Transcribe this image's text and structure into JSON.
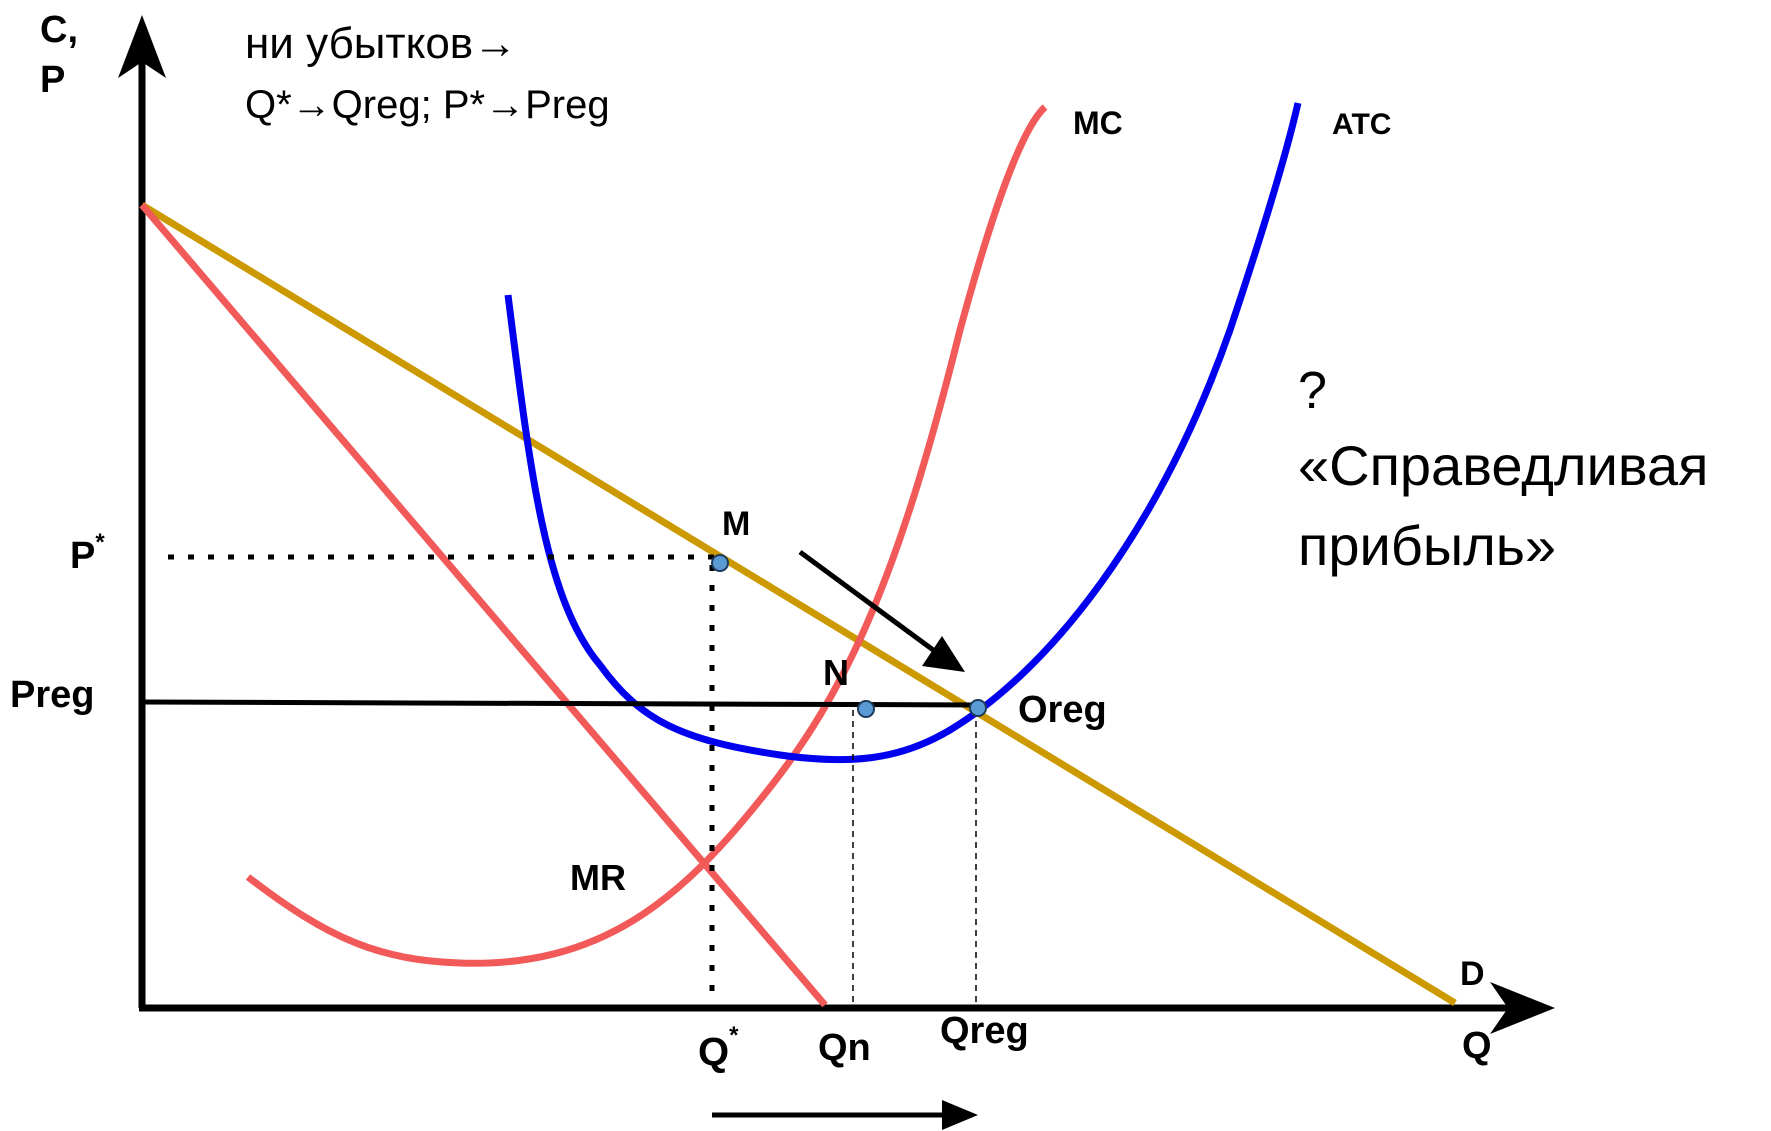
{
  "top_text": {
    "line1": "ни убытков→",
    "line2": "Q*→Qreg; P*→Preg"
  },
  "axes": {
    "y_label_line1": "C,",
    "y_label_line2": "P",
    "x_label": "Q"
  },
  "curves": {
    "mc": "MC",
    "atc": "ATC",
    "mr": "MR",
    "d": "D"
  },
  "points": {
    "m": "M",
    "n": "N",
    "oreg": "Oreg"
  },
  "price_labels": {
    "p_star": "P",
    "p_star_sup": "*",
    "preg": "Preg"
  },
  "quantity_labels": {
    "q_star": "Q",
    "q_star_sup": "*",
    "qn": "Qn",
    "qreg": "Qreg"
  },
  "side_text": {
    "question": "?",
    "line1": "«Справедливая",
    "line2": "прибыль»"
  },
  "colors": {
    "axis": "#000000",
    "demand": "#cc9900",
    "mc_mr": "#f25a5a",
    "atc": "#0000ee",
    "point_fill": "#5b9bd5",
    "preg_line": "#000000"
  }
}
